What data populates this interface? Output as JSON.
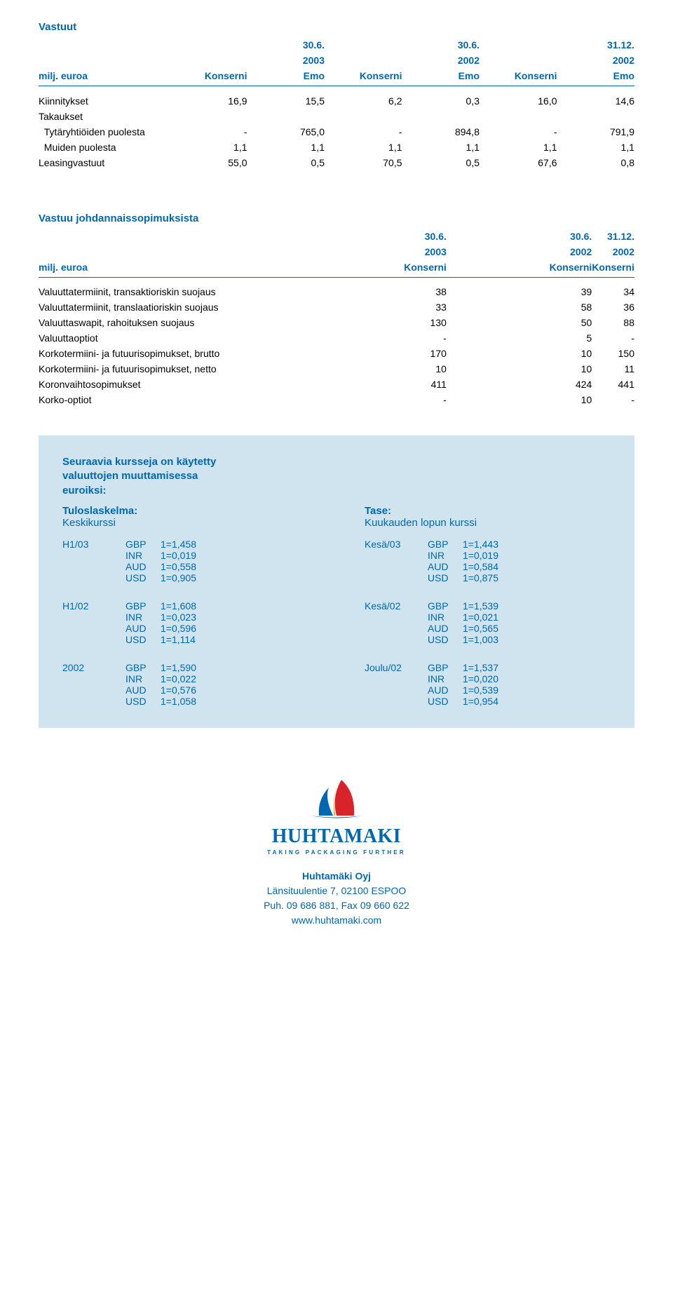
{
  "table1": {
    "title": "Vastuut",
    "dates": [
      "",
      "30.6.",
      "",
      "30.6.",
      "",
      "31.12.",
      ""
    ],
    "years": [
      "",
      "2003",
      "",
      "2002",
      "",
      "2002",
      ""
    ],
    "labels": [
      "milj. euroa",
      "Konserni",
      "Emo",
      "Konserni",
      "Emo",
      "Konserni",
      "Emo"
    ],
    "rows": [
      {
        "label": "Kiinnitykset",
        "v": [
          "16,9",
          "15,5",
          "6,2",
          "0,3",
          "16,0",
          "14,6"
        ]
      },
      {
        "label": "Takaukset",
        "v": [
          "",
          "",
          "",
          "",
          "",
          ""
        ]
      },
      {
        "label": "  Tytäryhtiöiden puolesta",
        "v": [
          "-",
          "765,0",
          "-",
          "894,8",
          "-",
          "791,9"
        ]
      },
      {
        "label": "  Muiden puolesta",
        "v": [
          "1,1",
          "1,1",
          "1,1",
          "1,1",
          "1,1",
          "1,1"
        ]
      },
      {
        "label": "Leasingvastuut",
        "v": [
          "55,0",
          "0,5",
          "70,5",
          "0,5",
          "67,6",
          "0,8"
        ]
      }
    ]
  },
  "table2": {
    "title": "Vastuu johdannaissopimuksista",
    "dates": [
      "",
      "30.6.",
      "30.6.",
      "31.12."
    ],
    "years": [
      "",
      "2003",
      "2002",
      "2002"
    ],
    "labels": [
      "milj. euroa",
      "Konserni",
      "Konserni",
      "Konserni"
    ],
    "rows": [
      {
        "label": "Valuuttatermiinit, transaktioriskin suojaus",
        "v": [
          "38",
          "39",
          "34"
        ]
      },
      {
        "label": "Valuuttatermiinit, translaatioriskin suojaus",
        "v": [
          "33",
          "58",
          "36"
        ]
      },
      {
        "label": "Valuuttaswapit, rahoituksen suojaus",
        "v": [
          "130",
          "50",
          "88"
        ]
      },
      {
        "label": "Valuuttaoptiot",
        "v": [
          "-",
          "5",
          "-"
        ]
      },
      {
        "label": "Korkotermiini- ja futuurisopimukset, brutto",
        "v": [
          "170",
          "10",
          "150"
        ]
      },
      {
        "label": "Korkotermiini- ja futuurisopimukset, netto",
        "v": [
          "10",
          "10",
          "11"
        ]
      },
      {
        "label": "Koronvaihtosopimukset",
        "v": [
          "411",
          "424",
          "441"
        ]
      },
      {
        "label": "Korko-optiot",
        "v": [
          "-",
          "10",
          "-"
        ]
      }
    ]
  },
  "currency": {
    "title_lines": [
      "Seuraavia kursseja on käytetty",
      "valuuttojen muuttamisessa",
      "euroiksi:"
    ],
    "left": {
      "head": "Tuloslaskelma:",
      "sub": "Keskikurssi",
      "blocks": [
        {
          "period": "H1/03",
          "rates": [
            [
              "GBP",
              "1=1,458"
            ],
            [
              "INR",
              "1=0,019"
            ],
            [
              "AUD",
              "1=0,558"
            ],
            [
              "USD",
              "1=0,905"
            ]
          ]
        },
        {
          "period": "H1/02",
          "rates": [
            [
              "GBP",
              "1=1,608"
            ],
            [
              "INR",
              "1=0,023"
            ],
            [
              "AUD",
              "1=0,596"
            ],
            [
              "USD",
              "1=1,114"
            ]
          ]
        },
        {
          "period": "2002",
          "rates": [
            [
              "GBP",
              "1=1,590"
            ],
            [
              "INR",
              "1=0,022"
            ],
            [
              "AUD",
              "1=0,576"
            ],
            [
              "USD",
              "1=1,058"
            ]
          ]
        }
      ]
    },
    "right": {
      "head": "Tase:",
      "sub": "Kuukauden lopun kurssi",
      "blocks": [
        {
          "period": "Kesä/03",
          "rates": [
            [
              "GBP",
              "1=1,443"
            ],
            [
              "INR",
              "1=0,019"
            ],
            [
              "AUD",
              "1=0,584"
            ],
            [
              "USD",
              "1=0,875"
            ]
          ]
        },
        {
          "period": "Kesä/02",
          "rates": [
            [
              "GBP",
              "1=1,539"
            ],
            [
              "INR",
              "1=0,021"
            ],
            [
              "AUD",
              "1=0,565"
            ],
            [
              "USD",
              "1=1,003"
            ]
          ]
        },
        {
          "period": "Joulu/02",
          "rates": [
            [
              "GBP",
              "1=1,537"
            ],
            [
              "INR",
              "1=0,020"
            ],
            [
              "AUD",
              "1=0,539"
            ],
            [
              "USD",
              "1=0,954"
            ]
          ]
        }
      ]
    }
  },
  "footer": {
    "brand": "HUHTAMAKI",
    "tagline": "TAKING PACKAGING FURTHER",
    "company": "Huhtamäki Oyj",
    "address": "Länsituulentie 7, 02100 ESPOO",
    "phone": "Puh. 09 686 881, Fax 09 660 622",
    "url": "www.huhtamaki.com"
  },
  "colors": {
    "brand_blue": "#0067b1",
    "box_bg": "#cfe4ef",
    "logo_red": "#d8232a",
    "logo_yellow": "#f5a81c",
    "logo_blue": "#0067b1"
  }
}
